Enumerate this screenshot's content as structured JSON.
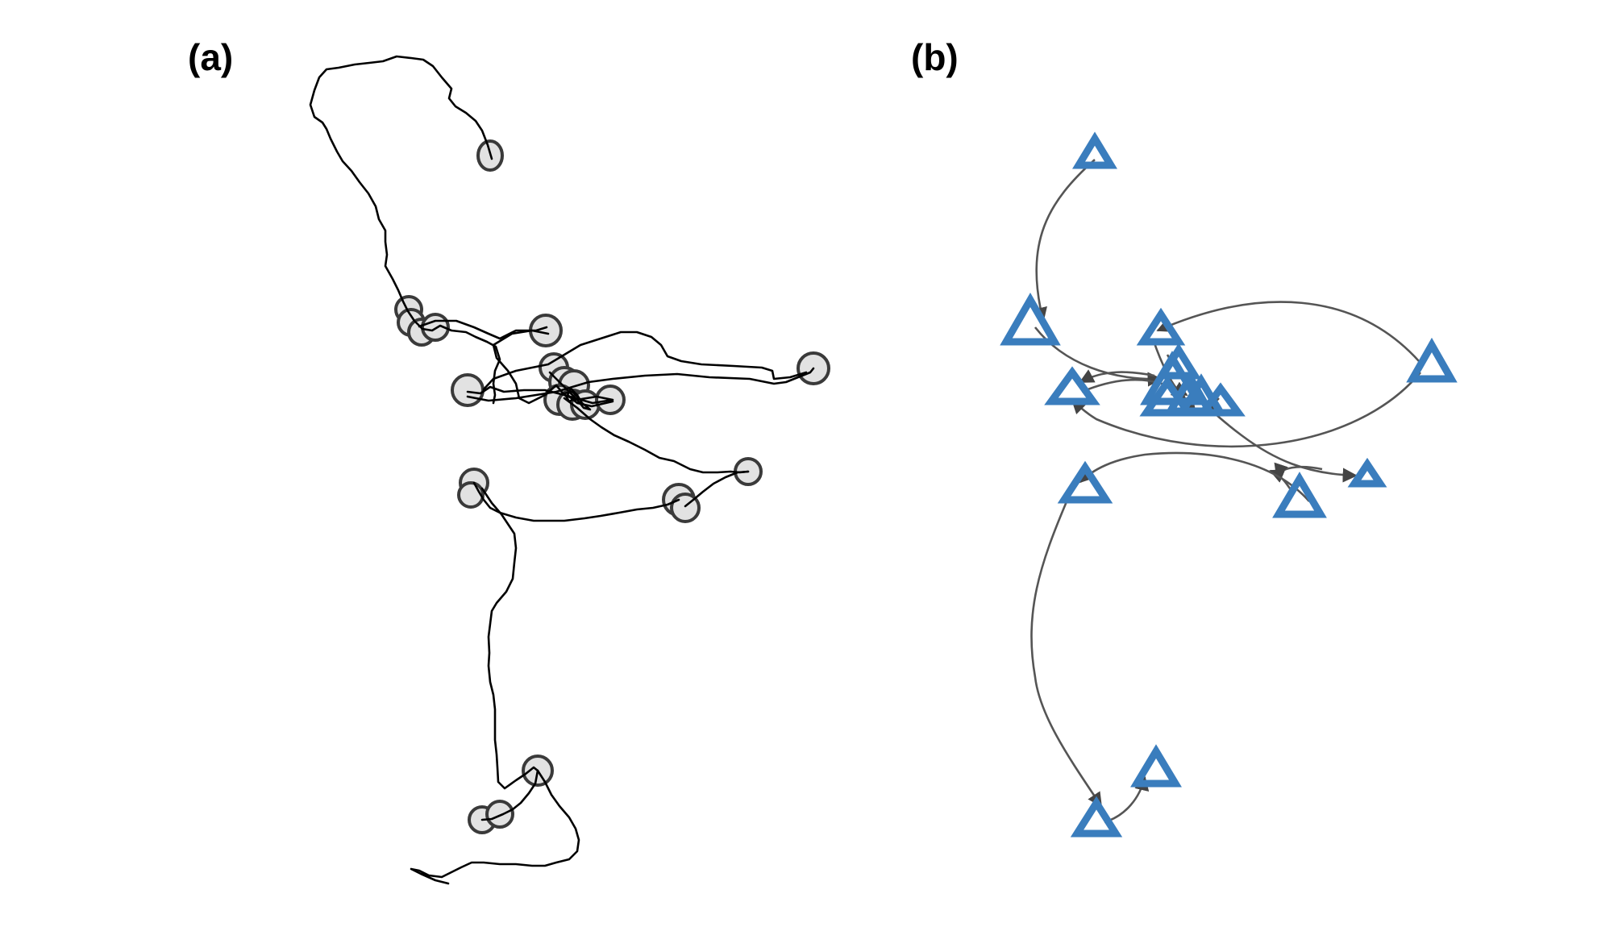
{
  "panel_a": {
    "label": "(a)"
  },
  "panel_b": {
    "label": "(b)"
  },
  "colors": {
    "track": "#000000",
    "stop_fill": "#e2e2e2",
    "stop_stroke": "#3a3a3a",
    "triangle": "#3a7dbd",
    "arrow": "#555555"
  }
}
